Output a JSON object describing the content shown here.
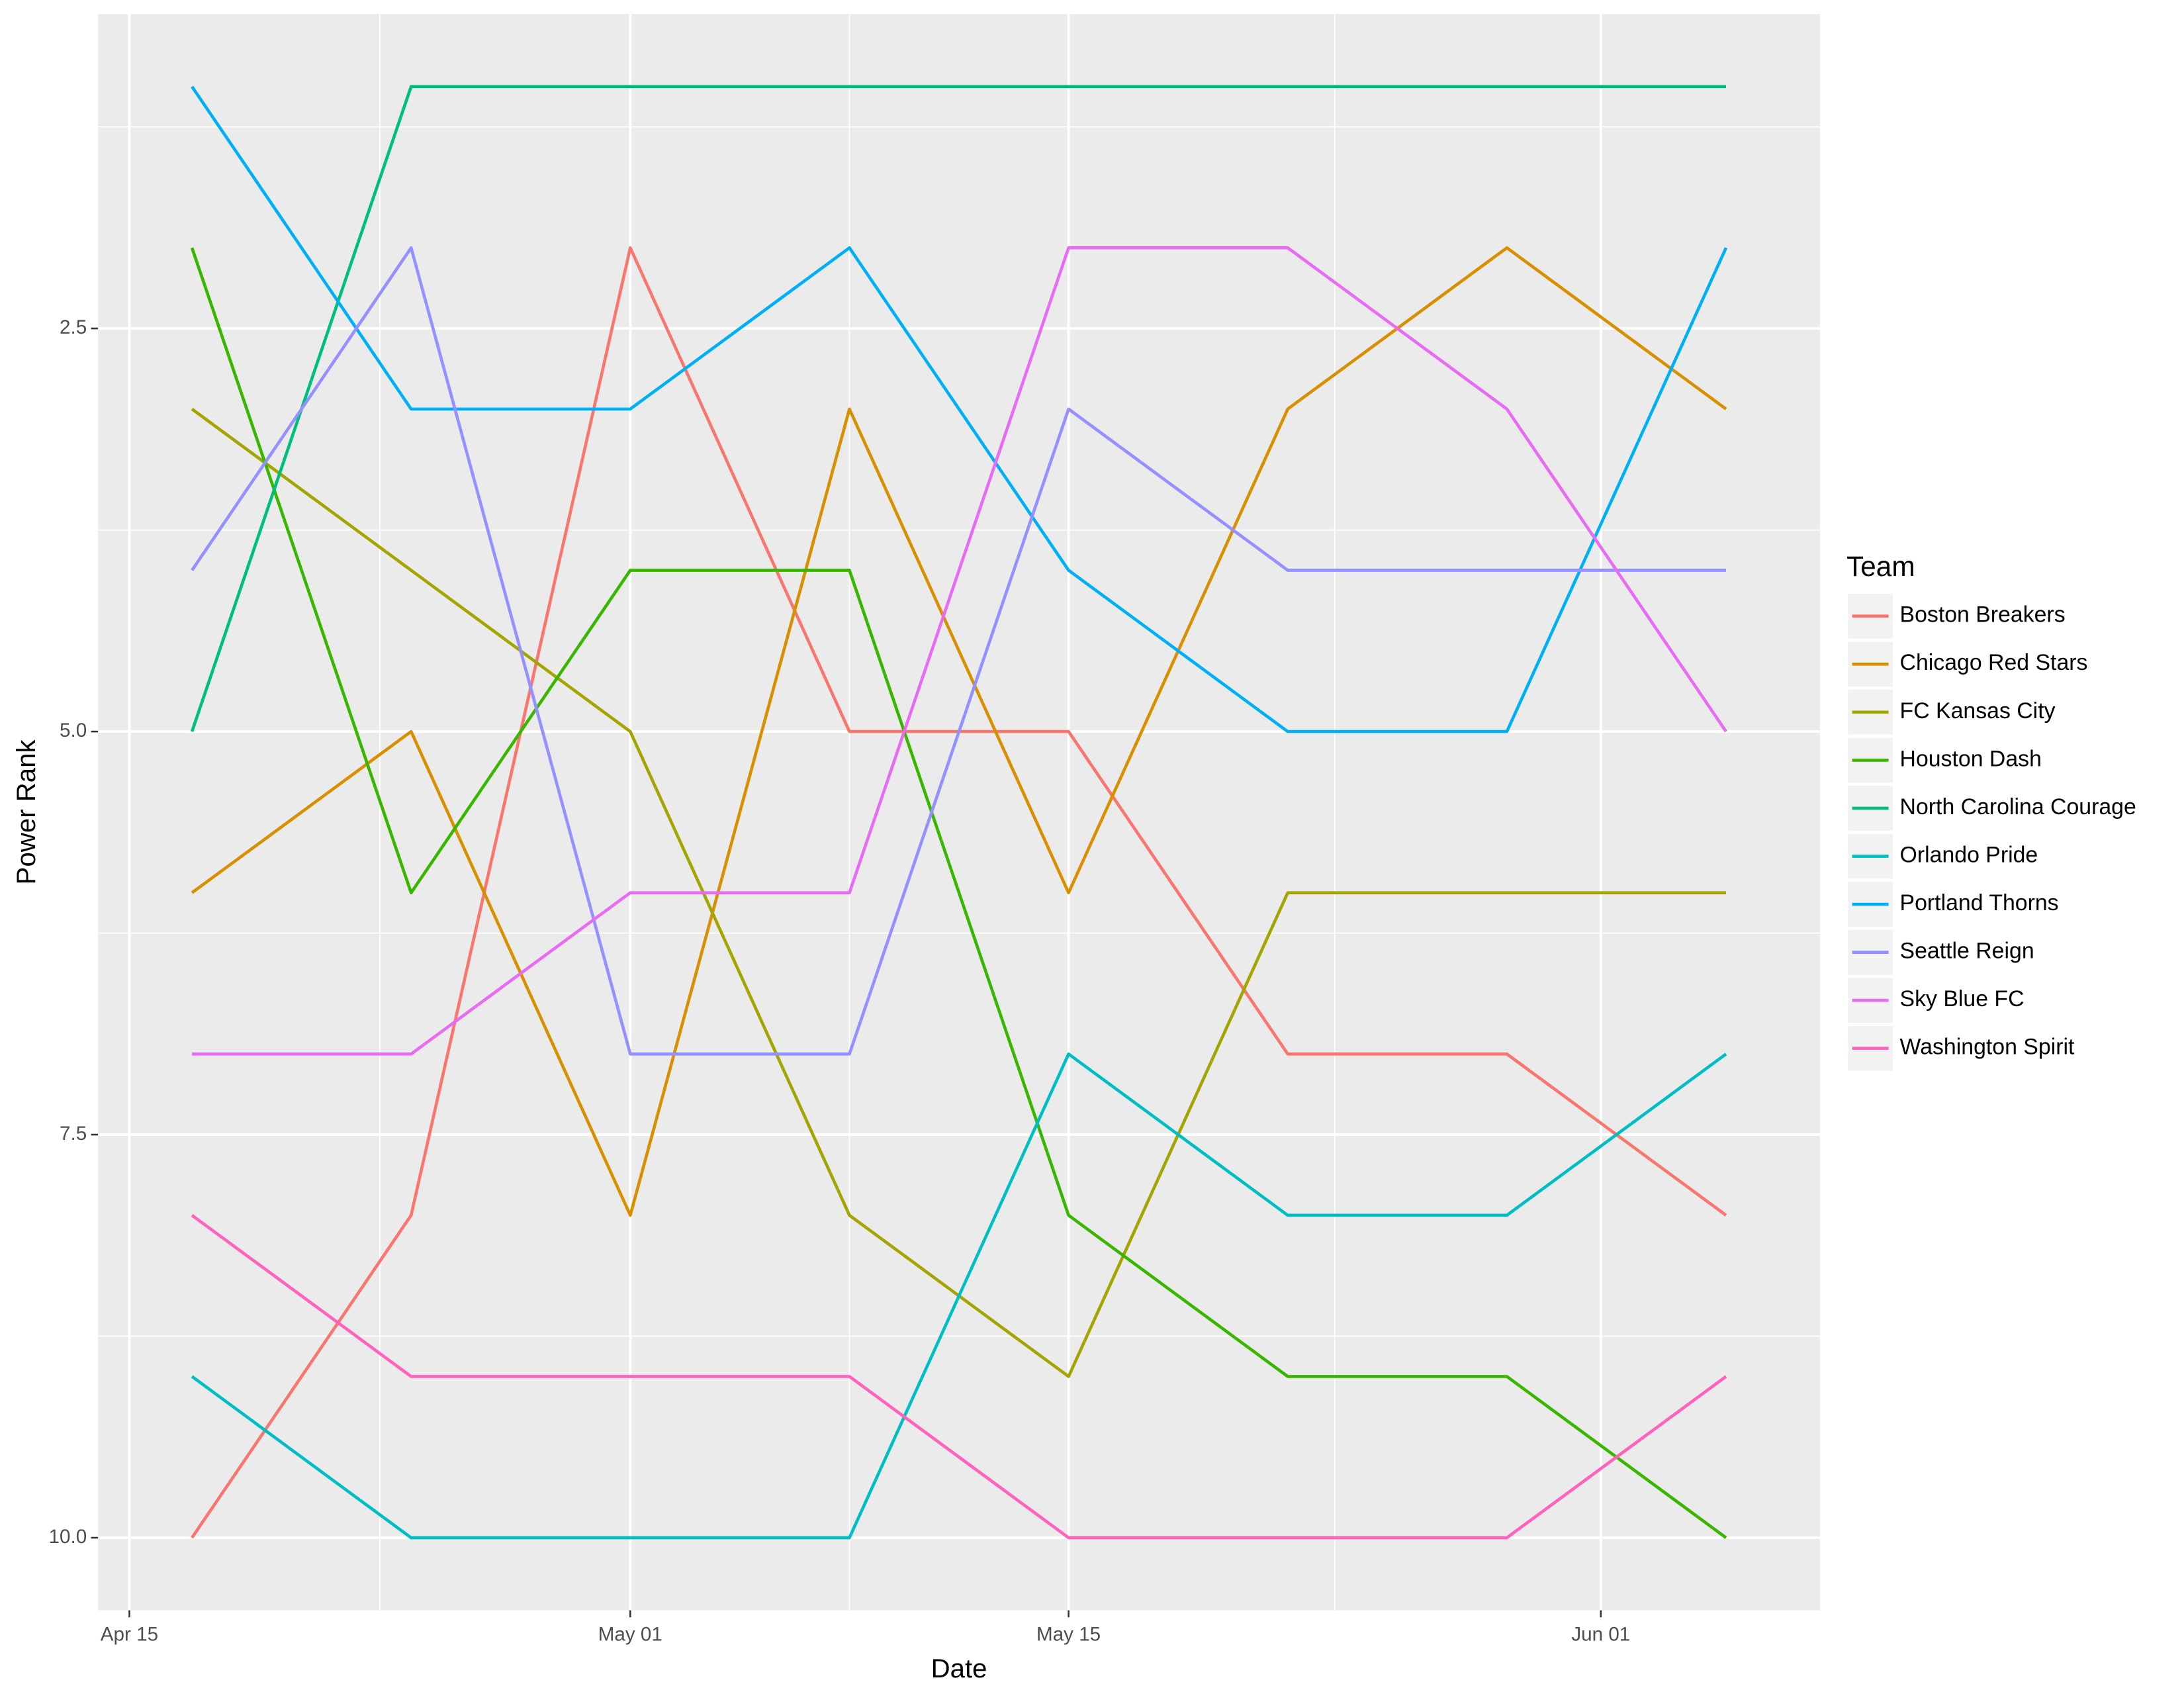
{
  "chart_data": {
    "type": "line",
    "x_label": "Date",
    "y_label": "Power Rank",
    "legend_title": "Team",
    "x": [
      "Apr 17",
      "Apr 24",
      "May 01",
      "May 08",
      "May 15",
      "May 22",
      "May 29",
      "Jun 05"
    ],
    "xlim": [
      "Apr 14",
      "Jun 08"
    ],
    "xticks": [
      "Apr 15",
      "May 01",
      "May 15",
      "Jun 01"
    ],
    "ylim": [
      0.55,
      10.45
    ],
    "y_reversed": true,
    "yticks": [
      2.5,
      {
        "value": 5,
        "label": "5.0"
      },
      7.5,
      {
        "value": 10,
        "label": "10.0"
      }
    ],
    "grid": true,
    "legend": "right",
    "series": [
      {
        "name": "Boston Breakers",
        "color": "#F8766D",
        "values": [
          10,
          8,
          2,
          5,
          5,
          7,
          7,
          8
        ]
      },
      {
        "name": "Chicago Red Stars",
        "color": "#D89000",
        "values": [
          6,
          5,
          8,
          3,
          6,
          3,
          2,
          3
        ]
      },
      {
        "name": "FC Kansas City",
        "color": "#A3A500",
        "values": [
          3,
          4,
          5,
          8,
          9,
          6,
          6,
          6
        ]
      },
      {
        "name": "Houston Dash",
        "color": "#39B600",
        "values": [
          2,
          6,
          4,
          4,
          8,
          9,
          9,
          10
        ]
      },
      {
        "name": "North Carolina Courage",
        "color": "#00BF7D",
        "values": [
          5,
          1,
          1,
          1,
          1,
          1,
          1,
          1
        ]
      },
      {
        "name": "Orlando Pride",
        "color": "#00BFC4",
        "values": [
          9,
          10,
          10,
          10,
          7,
          8,
          8,
          7
        ]
      },
      {
        "name": "Portland Thorns",
        "color": "#00B0F6",
        "values": [
          1,
          3,
          3,
          2,
          4,
          5,
          5,
          2
        ]
      },
      {
        "name": "Seattle Reign",
        "color": "#9590FF",
        "values": [
          4,
          2,
          7,
          7,
          3,
          4,
          4,
          4
        ]
      },
      {
        "name": "Sky Blue FC",
        "color": "#E76BF3",
        "values": [
          7,
          7,
          6,
          6,
          2,
          2,
          3,
          5
        ]
      },
      {
        "name": "Washington Spirit",
        "color": "#FF62BC",
        "values": [
          8,
          9,
          9,
          9,
          10,
          10,
          10,
          9
        ]
      }
    ]
  }
}
